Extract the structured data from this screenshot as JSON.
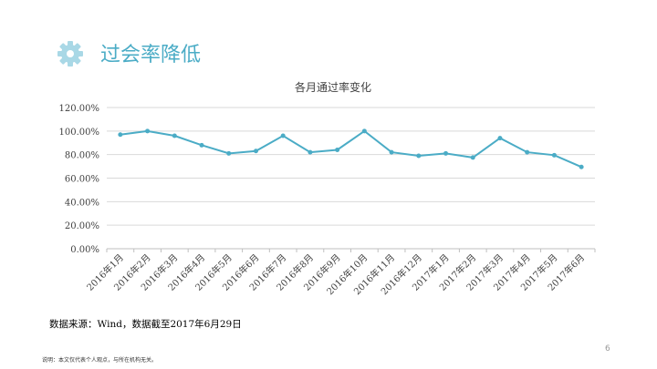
{
  "header": {
    "title": "过会率降低"
  },
  "chart_data": {
    "type": "line",
    "title": "各月通过率变化",
    "categories": [
      "2016年1月",
      "2016年2月",
      "2016年3月",
      "2016年4月",
      "2016年5月",
      "2016年6月",
      "2016年7月",
      "2016年8月",
      "2016年9月",
      "2016年10月",
      "2016年11月",
      "2016年12月",
      "2017年1月",
      "2017年2月",
      "2017年3月",
      "2017年4月",
      "2017年5月",
      "2017年6月"
    ],
    "series": [
      {
        "name": "通过率",
        "color": "#4bacc6",
        "values": [
          97,
          100,
          96,
          88,
          81,
          83,
          96,
          82,
          84,
          100,
          82,
          79,
          81,
          77.5,
          94,
          82,
          79.5,
          69.5
        ]
      }
    ],
    "ylim": [
      0,
      120
    ],
    "yticks": [
      {
        "value": 0,
        "label": "0.00%"
      },
      {
        "value": 20,
        "label": "20.00%"
      },
      {
        "value": 40,
        "label": "40.00%"
      },
      {
        "value": 60,
        "label": "60.00%"
      },
      {
        "value": 80,
        "label": "80.00%"
      },
      {
        "value": 100,
        "label": "100.00%"
      },
      {
        "value": 120,
        "label": "120.00%"
      }
    ],
    "grid": true
  },
  "source": "数据来源：Wind，数据截至2017年6月29日",
  "page_number": "6",
  "footer": "说明：本文仅代表个人观点，与所在机构无关。"
}
